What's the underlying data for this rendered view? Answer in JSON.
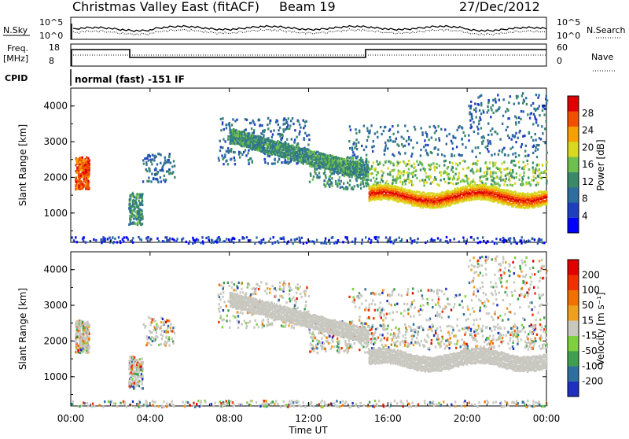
{
  "header": {
    "station": "Christmas Valley East (fitACF)",
    "beam": "Beam 19",
    "date": "27/Dec/2012"
  },
  "noise_panel": {
    "left_label": "N.Sky",
    "right_label": "N.Search",
    "left_ticks": [
      "10^5",
      "10^0"
    ],
    "right_ticks": [
      "10^5",
      "10^0"
    ]
  },
  "freq_panel": {
    "left_label_1": "Freq.",
    "left_label_2": "[MHz]",
    "right_label": "Nave",
    "left_ticks": [
      "18",
      "8"
    ],
    "right_ticks": [
      "60",
      "0"
    ]
  },
  "cpid_panel": {
    "label": "CPID",
    "text": "normal (fast) -151 IF"
  },
  "chart_data": [
    {
      "type": "heatmap",
      "name": "power",
      "ylabel": "Slant Range [km]",
      "yticks": [
        "4000",
        "3000",
        "2000",
        "1000"
      ],
      "ylim": [
        180,
        4500
      ],
      "colorbar_label": "Power [dB]",
      "colorbar_ticks": [
        "28",
        "24",
        "20",
        "16",
        "12",
        "8",
        "4"
      ],
      "colorbar_colors": [
        "#0000ff",
        "#1f3fbf",
        "#2e6e9e",
        "#3a8a6a",
        "#6fbf4f",
        "#d8d820",
        "#f5a000",
        "#f05000",
        "#e00000"
      ]
    },
    {
      "type": "heatmap",
      "name": "velocity",
      "ylabel": "Slant Range [km]",
      "yticks": [
        "4000",
        "3000",
        "2000",
        "1000"
      ],
      "ylim": [
        180,
        4500
      ],
      "colorbar_label": "Velocity [m s⁻¹]",
      "colorbar_ticks": [
        "200",
        "100",
        "50",
        "15",
        "-15",
        "-50",
        "-100",
        "-200"
      ],
      "colorbar_colors": [
        "#1f2fbf",
        "#2f6f9f",
        "#3f9f4f",
        "#7fcf3f",
        "#c8c8c0",
        "#f0a020",
        "#f07000",
        "#f03000",
        "#e00000"
      ],
      "xlabel": "Time UT"
    }
  ],
  "xticks": [
    "00:00",
    "04:00",
    "08:00",
    "12:00",
    "16:00",
    "20:00",
    "00:00"
  ],
  "xlabel": "Time UT"
}
